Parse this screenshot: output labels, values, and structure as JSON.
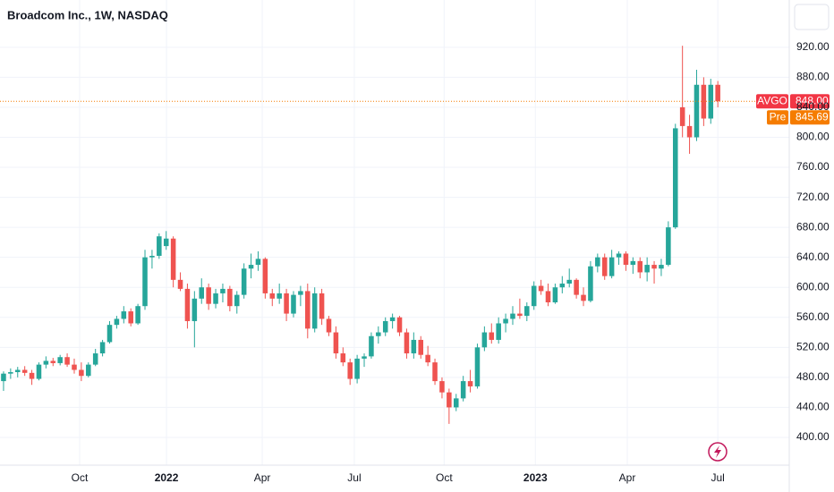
{
  "chart_data": {
    "type": "candlestick",
    "title": "Broadcom Inc., 1W, NASDAQ",
    "up_color": "#26a69a",
    "down_color": "#ef5350",
    "grid": true,
    "xlim": [
      -0.5,
      111.1
    ],
    "xticks": [
      {
        "value": 10.76,
        "label": "Oct"
      },
      {
        "value": 23.04,
        "label": "2022"
      },
      {
        "value": 36.58,
        "label": "Apr"
      },
      {
        "value": 49.6,
        "label": "Jul"
      },
      {
        "value": 62.3,
        "label": "Oct"
      },
      {
        "value": 75.2,
        "label": "2023"
      },
      {
        "value": 88.2,
        "label": "Apr"
      },
      {
        "value": 101.0,
        "label": "Jul"
      }
    ],
    "ylim": [
      363,
      983
    ],
    "yticks": [
      {
        "value": 400,
        "label": "400.00"
      },
      {
        "value": 440,
        "label": "440.00"
      },
      {
        "value": 480,
        "label": "480.00"
      },
      {
        "value": 520,
        "label": "520.00"
      },
      {
        "value": 560,
        "label": "560.00"
      },
      {
        "value": 600,
        "label": "600.00"
      },
      {
        "value": 640,
        "label": "640.00"
      },
      {
        "value": 680,
        "label": "680.00"
      },
      {
        "value": 720,
        "label": "720.00"
      },
      {
        "value": 760,
        "label": "760.00"
      },
      {
        "value": 800,
        "label": "800.00"
      },
      {
        "value": 840,
        "label": "840.00"
      },
      {
        "value": 880,
        "label": "880.00"
      },
      {
        "value": 920,
        "label": "920.00"
      }
    ],
    "symbol": "AVGO",
    "last_price": {
      "value": 848,
      "label": "848.00"
    },
    "last_color": "#f23645",
    "pre_label": "Pre",
    "pre_price": 845.69,
    "pre_color": "#f57c00",
    "candles": [
      [
        475,
        488,
        462,
        485
      ],
      [
        485,
        492,
        478,
        487
      ],
      [
        487,
        494,
        480,
        490
      ],
      [
        490,
        495,
        482,
        486
      ],
      [
        486,
        490,
        470,
        478
      ],
      [
        478,
        500,
        476,
        497
      ],
      [
        497,
        508,
        492,
        502
      ],
      [
        502,
        506,
        495,
        499
      ],
      [
        499,
        510,
        496,
        507
      ],
      [
        507,
        512,
        494,
        497
      ],
      [
        497,
        505,
        485,
        490
      ],
      [
        490,
        500,
        475,
        482
      ],
      [
        482,
        500,
        480,
        497
      ],
      [
        497,
        518,
        495,
        512
      ],
      [
        512,
        530,
        508,
        527
      ],
      [
        527,
        555,
        525,
        550
      ],
      [
        550,
        562,
        545,
        558
      ],
      [
        558,
        575,
        552,
        568
      ],
      [
        568,
        572,
        548,
        552
      ],
      [
        552,
        578,
        550,
        575
      ],
      [
        575,
        650,
        570,
        640
      ],
      [
        640,
        650,
        625,
        642
      ],
      [
        642,
        672,
        638,
        668
      ],
      [
        655,
        675,
        650,
        665
      ],
      [
        665,
        668,
        600,
        610
      ],
      [
        610,
        620,
        595,
        598
      ],
      [
        598,
        605,
        545,
        555
      ],
      [
        555,
        595,
        520,
        585
      ],
      [
        585,
        612,
        578,
        600
      ],
      [
        600,
        605,
        570,
        578
      ],
      [
        578,
        598,
        572,
        592
      ],
      [
        592,
        605,
        580,
        598
      ],
      [
        598,
        602,
        568,
        575
      ],
      [
        575,
        595,
        565,
        590
      ],
      [
        590,
        632,
        585,
        625
      ],
      [
        625,
        645,
        612,
        630
      ],
      [
        630,
        648,
        622,
        638
      ],
      [
        638,
        640,
        585,
        592
      ],
      [
        592,
        598,
        575,
        585
      ],
      [
        585,
        605,
        578,
        592
      ],
      [
        592,
        598,
        555,
        565
      ],
      [
        565,
        595,
        560,
        590
      ],
      [
        590,
        602,
        575,
        595
      ],
      [
        595,
        605,
        532,
        545
      ],
      [
        545,
        600,
        540,
        592
      ],
      [
        592,
        598,
        550,
        558
      ],
      [
        558,
        562,
        535,
        540
      ],
      [
        540,
        548,
        505,
        512
      ],
      [
        512,
        520,
        495,
        500
      ],
      [
        500,
        505,
        470,
        478
      ],
      [
        478,
        510,
        472,
        505
      ],
      [
        505,
        512,
        494,
        508
      ],
      [
        508,
        540,
        505,
        535
      ],
      [
        535,
        548,
        525,
        540
      ],
      [
        540,
        560,
        535,
        555
      ],
      [
        555,
        565,
        545,
        560
      ],
      [
        560,
        562,
        535,
        540
      ],
      [
        540,
        545,
        505,
        512
      ],
      [
        512,
        540,
        505,
        530
      ],
      [
        530,
        535,
        505,
        510
      ],
      [
        510,
        522,
        495,
        500
      ],
      [
        500,
        505,
        470,
        475
      ],
      [
        475,
        480,
        452,
        460
      ],
      [
        460,
        465,
        418,
        440
      ],
      [
        440,
        458,
        435,
        452
      ],
      [
        452,
        482,
        448,
        475
      ],
      [
        475,
        490,
        460,
        468
      ],
      [
        468,
        525,
        465,
        520
      ],
      [
        520,
        548,
        515,
        540
      ],
      [
        540,
        552,
        525,
        530
      ],
      [
        530,
        560,
        525,
        552
      ],
      [
        552,
        565,
        540,
        558
      ],
      [
        558,
        575,
        550,
        565
      ],
      [
        565,
        585,
        558,
        562
      ],
      [
        562,
        580,
        555,
        575
      ],
      [
        575,
        608,
        570,
        602
      ],
      [
        602,
        610,
        590,
        595
      ],
      [
        595,
        605,
        575,
        580
      ],
      [
        580,
        605,
        578,
        600
      ],
      [
        600,
        615,
        592,
        605
      ],
      [
        605,
        625,
        600,
        610
      ],
      [
        610,
        612,
        585,
        590
      ],
      [
        590,
        600,
        575,
        582
      ],
      [
        582,
        635,
        580,
        628
      ],
      [
        628,
        645,
        620,
        640
      ],
      [
        640,
        645,
        610,
        615
      ],
      [
        615,
        650,
        612,
        640
      ],
      [
        640,
        648,
        630,
        645
      ],
      [
        645,
        648,
        622,
        630
      ],
      [
        630,
        640,
        618,
        635
      ],
      [
        635,
        640,
        612,
        620
      ],
      [
        620,
        640,
        608,
        630
      ],
      [
        630,
        635,
        605,
        625
      ],
      [
        625,
        638,
        615,
        630
      ],
      [
        630,
        688,
        628,
        680
      ],
      [
        680,
        818,
        678,
        812
      ],
      [
        840,
        922,
        800,
        815
      ],
      [
        815,
        830,
        778,
        800
      ],
      [
        800,
        890,
        795,
        870
      ],
      [
        870,
        880,
        815,
        825
      ],
      [
        825,
        878,
        818,
        870
      ],
      [
        870,
        875,
        840,
        848
      ]
    ]
  }
}
